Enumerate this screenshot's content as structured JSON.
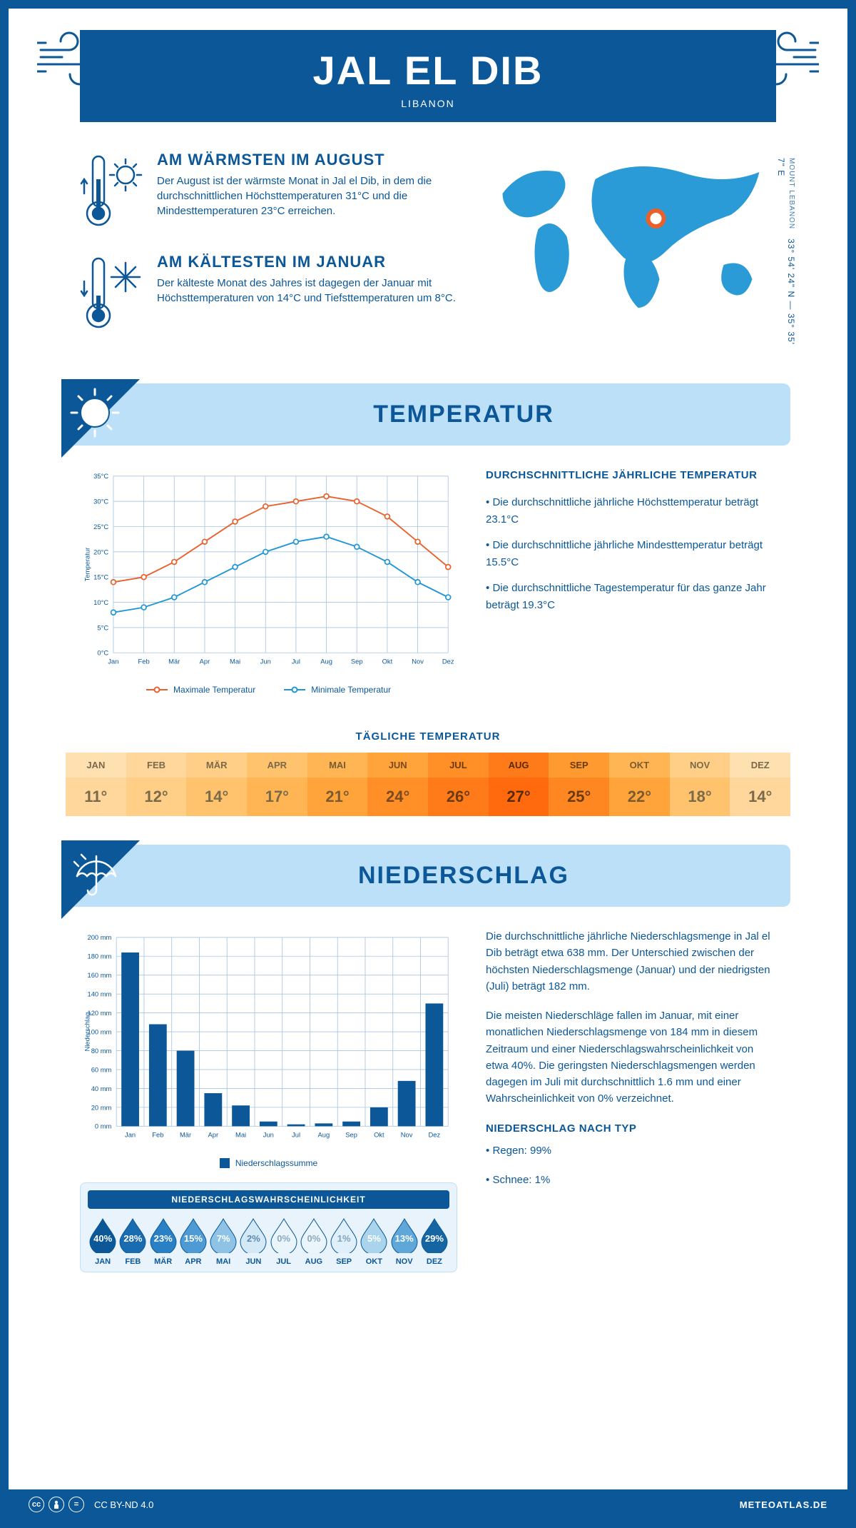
{
  "header": {
    "title": "JAL EL DIB",
    "subtitle": "LIBANON"
  },
  "coords": {
    "lat": "33° 54' 24\" N",
    "lon": "35° 35' 7\" E",
    "region": "MOUNT LEBANON"
  },
  "warmest": {
    "title": "AM WÄRMSTEN IM AUGUST",
    "text": "Der August ist der wärmste Monat in Jal el Dib, in dem die durchschnittlichen Höchsttemperaturen 31°C und die Mindesttemperaturen 23°C erreichen."
  },
  "coldest": {
    "title": "AM KÄLTESTEN IM JANUAR",
    "text": "Der kälteste Monat des Jahres ist dagegen der Januar mit Höchsttemperaturen von 14°C und Tiefsttemperaturen um 8°C."
  },
  "temp_section": {
    "heading": "TEMPERATUR"
  },
  "rain_section": {
    "heading": "NIEDERSCHLAG"
  },
  "temp_text": {
    "title": "DURCHSCHNITTLICHE JÄHRLICHE TEMPERATUR",
    "p1": "• Die durchschnittliche jährliche Höchsttemperatur beträgt 23.1°C",
    "p2": "• Die durchschnittliche jährliche Mindesttemperatur beträgt 15.5°C",
    "p3": "• Die durchschnittliche Tagestemperatur für das ganze Jahr beträgt 19.3°C"
  },
  "temp_chart": {
    "type": "line",
    "months": [
      "Jan",
      "Feb",
      "Mär",
      "Apr",
      "Mai",
      "Jun",
      "Jul",
      "Aug",
      "Sep",
      "Okt",
      "Nov",
      "Dez"
    ],
    "max": [
      14,
      15,
      18,
      22,
      26,
      29,
      30,
      31,
      30,
      27,
      22,
      17
    ],
    "min": [
      8,
      9,
      11,
      14,
      17,
      20,
      22,
      23,
      21,
      18,
      14,
      11
    ],
    "ylim": [
      0,
      35
    ],
    "ystep": 5,
    "ylabel": "Temperatur",
    "max_color": "#e8602c",
    "min_color": "#2196d6",
    "grid_color": "#a9c5df",
    "marker": "circle",
    "marker_fill": "#ffffff",
    "legend_max": "Maximale Temperatur",
    "legend_min": "Minimale Temperatur"
  },
  "daily": {
    "title": "TÄGLICHE TEMPERATUR",
    "months": [
      "JAN",
      "FEB",
      "MÄR",
      "APR",
      "MAI",
      "JUN",
      "JUL",
      "AUG",
      "SEP",
      "OKT",
      "NOV",
      "DEZ"
    ],
    "values": [
      "11°",
      "12°",
      "14°",
      "17°",
      "21°",
      "24°",
      "26°",
      "27°",
      "25°",
      "22°",
      "18°",
      "14°"
    ],
    "head_colors": [
      "#ffe0b0",
      "#ffd79c",
      "#ffce87",
      "#ffc26d",
      "#ffb553",
      "#ffa43a",
      "#ff8f26",
      "#ff7b1a",
      "#ff9a30",
      "#ffb553",
      "#ffce87",
      "#ffe0b0"
    ],
    "val_colors": [
      "#ffd79c",
      "#ffce87",
      "#ffc26d",
      "#ffb553",
      "#ffa43a",
      "#ff8f26",
      "#ff7b1a",
      "#ff6a0f",
      "#ff8722",
      "#ffa43a",
      "#ffc26d",
      "#ffd79c"
    ],
    "text_colors": [
      "#7a6a4a",
      "#7a6a4a",
      "#7a6a4a",
      "#7a6a4a",
      "#7a5a30",
      "#7a4a20",
      "#6a3a10",
      "#5a2a05",
      "#6a3a10",
      "#7a5a30",
      "#7a6a4a",
      "#7a6a4a"
    ]
  },
  "rain_chart": {
    "type": "bar",
    "months": [
      "Jan",
      "Feb",
      "Mär",
      "Apr",
      "Mai",
      "Jun",
      "Jul",
      "Aug",
      "Sep",
      "Okt",
      "Nov",
      "Dez"
    ],
    "values": [
      184,
      108,
      80,
      35,
      22,
      5,
      2,
      3,
      5,
      20,
      48,
      130
    ],
    "ylim": [
      0,
      200
    ],
    "ystep": 20,
    "ylabel": "Niederschlag",
    "bar_color": "#0b5798",
    "grid_color": "#a9c5df",
    "legend": "Niederschlagssumme"
  },
  "rain_text": {
    "p1": "Die durchschnittliche jährliche Niederschlagsmenge in Jal el Dib beträgt etwa 638 mm. Der Unterschied zwischen der höchsten Niederschlagsmenge (Januar) und der niedrigsten (Juli) beträgt 182 mm.",
    "p2": "Die meisten Niederschläge fallen im Januar, mit einer monatlichen Niederschlagsmenge von 184 mm in diesem Zeitraum und einer Niederschlagswahrscheinlichkeit von etwa 40%. Die geringsten Niederschlagsmengen werden dagegen im Juli mit durchschnittlich 1.6 mm und einer Wahrscheinlichkeit von 0% verzeichnet.",
    "type_title": "NIEDERSCHLAG NACH TYP",
    "type_rain": "• Regen: 99%",
    "type_snow": "• Schnee: 1%"
  },
  "prob": {
    "title": "NIEDERSCHLAGSWAHRSCHEINLICHKEIT",
    "months": [
      "JAN",
      "FEB",
      "MÄR",
      "APR",
      "MAI",
      "JUN",
      "JUL",
      "AUG",
      "SEP",
      "OKT",
      "NOV",
      "DEZ"
    ],
    "values": [
      "40%",
      "28%",
      "23%",
      "15%",
      "7%",
      "2%",
      "0%",
      "0%",
      "1%",
      "5%",
      "13%",
      "29%"
    ],
    "fills": [
      "#0b5798",
      "#1a6cb0",
      "#2a80c5",
      "#4d9ad4",
      "#8fc3e6",
      "#d4e9f6",
      "#eaf4fb",
      "#eaf4fb",
      "#e0f0fa",
      "#a9d4ec",
      "#5fa6d9",
      "#1565a3"
    ],
    "text_colors": [
      "#ffffff",
      "#ffffff",
      "#ffffff",
      "#ffffff",
      "#ffffff",
      "#5a89ad",
      "#8aa9bf",
      "#8aa9bf",
      "#7ea3bb",
      "#ffffff",
      "#ffffff",
      "#ffffff"
    ]
  },
  "footer": {
    "license": "CC BY-ND 4.0",
    "site": "METEOATLAS.DE"
  }
}
